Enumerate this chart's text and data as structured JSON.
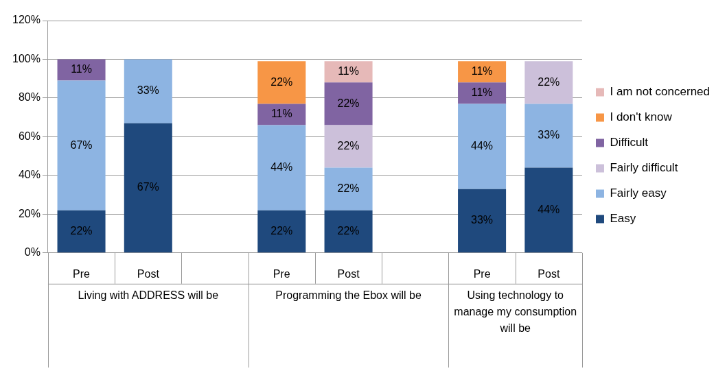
{
  "chart_data": {
    "type": "bar",
    "stacked": true,
    "categories": [
      "Pre",
      "Post",
      null,
      "Pre",
      "Post",
      null,
      "Pre",
      "Post"
    ],
    "annotations": [
      "Living with ADDRESS will be",
      "Programming the Ebox will be",
      "Using technology to manage my consumption will be"
    ],
    "ylim": [
      0,
      120
    ],
    "yticks": [
      {
        "value": 0,
        "label": "0%"
      },
      {
        "value": 20,
        "label": "20%"
      },
      {
        "value": 40,
        "label": "40%"
      },
      {
        "value": 60,
        "label": "60%"
      },
      {
        "value": 80,
        "label": "80%"
      },
      {
        "value": 100,
        "label": "100%"
      },
      {
        "value": 120,
        "label": "120%"
      }
    ],
    "grid": "y",
    "legend": "right",
    "series": [
      {
        "name": "Easy",
        "color": "#1f497d",
        "values": [
          22,
          67,
          null,
          22,
          22,
          null,
          33,
          44
        ],
        "value_labels": [
          "22%",
          "67%",
          null,
          "22%",
          "22%",
          null,
          "33%",
          "44%"
        ]
      },
      {
        "name": "Fairly easy",
        "color": "#8db4e2",
        "values": [
          67,
          33,
          null,
          44,
          22,
          null,
          44,
          33
        ],
        "value_labels": [
          "67%",
          "33%",
          null,
          "44%",
          "22%",
          null,
          "44%",
          "33%"
        ]
      },
      {
        "name": "Fairly difficult",
        "color": "#ccc0da",
        "values": [
          null,
          null,
          null,
          null,
          22,
          null,
          null,
          22
        ],
        "value_labels": [
          null,
          null,
          null,
          null,
          "22%",
          null,
          null,
          "22%"
        ]
      },
      {
        "name": "Difficult",
        "color": "#8064a2",
        "values": [
          11,
          null,
          null,
          11,
          22,
          null,
          11,
          null
        ],
        "value_labels": [
          "11%",
          null,
          null,
          "11%",
          "22%",
          null,
          "11%",
          null
        ]
      },
      {
        "name": "I don't know",
        "color": "#f79646",
        "values": [
          null,
          null,
          null,
          22,
          null,
          null,
          11,
          null
        ],
        "value_labels": [
          null,
          null,
          null,
          "22%",
          null,
          null,
          "11%",
          null
        ]
      },
      {
        "name": "I am not concerned",
        "color": "#e6b9b8",
        "values": [
          null,
          null,
          null,
          null,
          11,
          null,
          null,
          null
        ],
        "value_labels": [
          null,
          null,
          null,
          null,
          "11%",
          null,
          null,
          null
        ]
      }
    ]
  }
}
